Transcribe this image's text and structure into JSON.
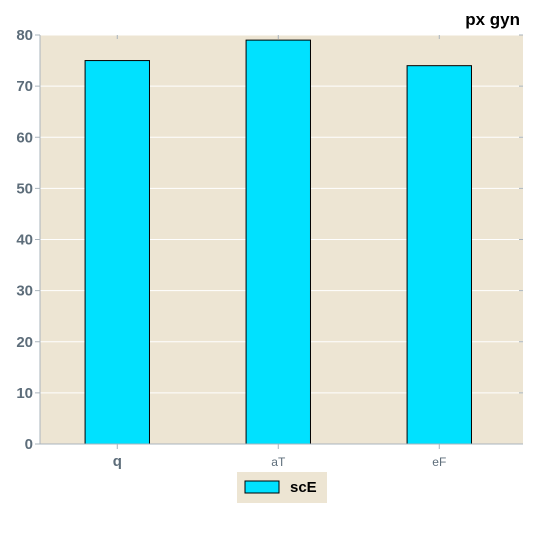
{
  "chart_data": {
    "type": "bar",
    "title": "px gyn",
    "xlabel": "",
    "ylabel": "",
    "categories": [
      "q",
      "aT",
      "eF"
    ],
    "series": [
      {
        "name": "scE",
        "values": [
          75,
          79,
          74
        ]
      }
    ],
    "ylim": [
      0,
      80
    ],
    "yticks": [
      0,
      10,
      20,
      30,
      40,
      50,
      60,
      70,
      80
    ],
    "grid": true,
    "legend_position": "bottom-center",
    "colors": {
      "bar_fill": "#00e1ff",
      "bar_stroke": "#000000",
      "plot_background": "#ede5d3",
      "grid_line": "#ffffff",
      "tick_label": "#5d6d7a",
      "axis_line": "#aab4bc"
    }
  }
}
